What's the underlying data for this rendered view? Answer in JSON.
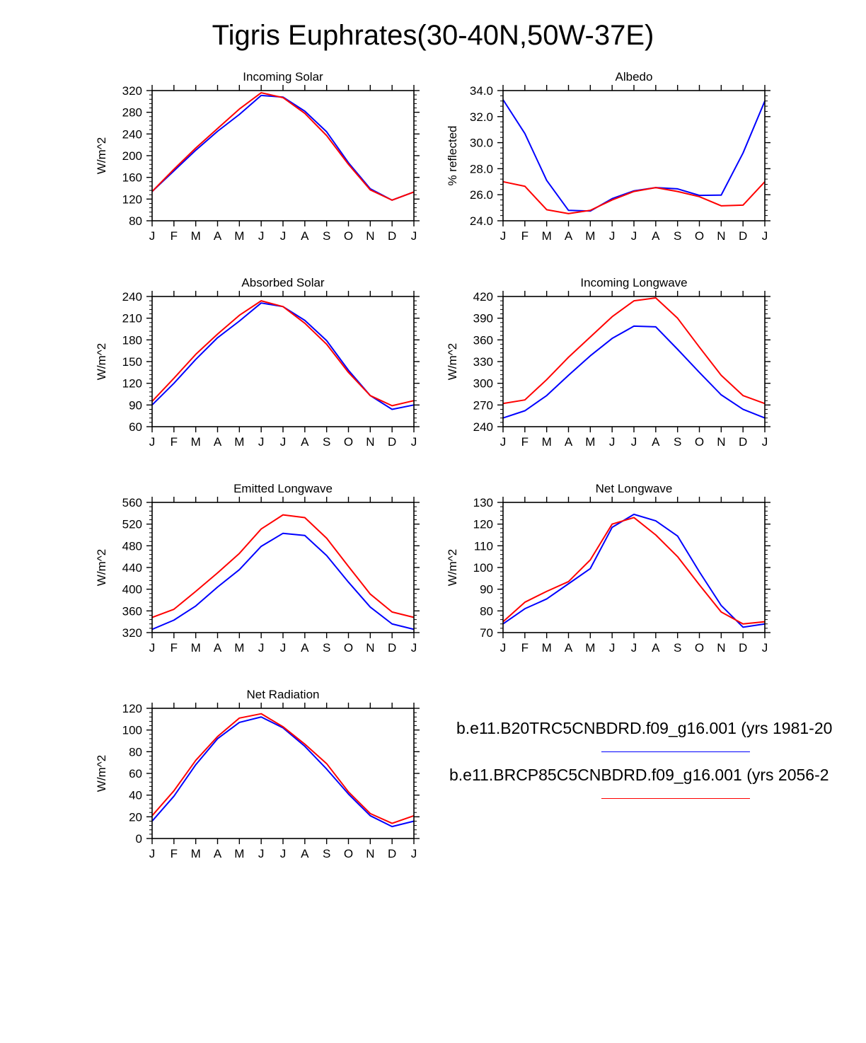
{
  "page": {
    "title": "Tigris Euphrates(30-40N,50W-37E)"
  },
  "months": [
    "J",
    "F",
    "M",
    "A",
    "M",
    "J",
    "J",
    "A",
    "S",
    "O",
    "N",
    "D",
    "J"
  ],
  "colors": {
    "series1": "#0000ff",
    "series2": "#ff0000"
  },
  "legend": {
    "entries": [
      {
        "label": "b.e11.B20TRC5CNBDRD.f09_g16.001 (yrs 1981-20",
        "color": "#0000ff"
      },
      {
        "label": "b.e11.BRCP85C5CNBDRD.f09_g16.001 (yrs 2056-2",
        "color": "#ff0000"
      }
    ]
  },
  "chart_data": [
    {
      "type": "line",
      "title": "Incoming Solar",
      "ylabel": "W/m^2",
      "ylim": [
        80,
        320
      ],
      "yticks": [
        "80",
        "120",
        "160",
        "200",
        "240",
        "280",
        "320"
      ],
      "categories": [
        "J",
        "F",
        "M",
        "A",
        "M",
        "J",
        "J",
        "A",
        "S",
        "O",
        "N",
        "D",
        "J"
      ],
      "series": [
        {
          "values": [
            134,
            172,
            210,
            245,
            276,
            311,
            308,
            282,
            244,
            187,
            139,
            118,
            133
          ],
          "color": "#0000ff"
        },
        {
          "values": [
            134,
            175,
            214,
            250,
            286,
            316,
            307,
            278,
            237,
            184,
            137,
            118,
            133
          ],
          "color": "#ff0000"
        }
      ]
    },
    {
      "type": "line",
      "title": "Albedo",
      "ylabel": "% reflected",
      "ylim": [
        24.0,
        34.0
      ],
      "yticks": [
        "24.0",
        "26.0",
        "28.0",
        "30.0",
        "32.0",
        "34.0"
      ],
      "categories": [
        "J",
        "F",
        "M",
        "A",
        "M",
        "J",
        "J",
        "A",
        "S",
        "O",
        "N",
        "D",
        "J"
      ],
      "series": [
        {
          "values": [
            33.3,
            30.7,
            27.1,
            24.8,
            24.75,
            25.7,
            26.3,
            26.55,
            26.45,
            25.95,
            25.97,
            29.2,
            33.2
          ],
          "color": "#0000ff"
        },
        {
          "values": [
            27.0,
            26.65,
            24.85,
            24.55,
            24.8,
            25.6,
            26.25,
            26.55,
            26.25,
            25.85,
            25.15,
            25.2,
            27.0
          ],
          "color": "#ff0000"
        }
      ]
    },
    {
      "type": "line",
      "title": "Absorbed Solar",
      "ylabel": "W/m^2",
      "ylim": [
        60,
        240
      ],
      "yticks": [
        "60",
        "90",
        "120",
        "150",
        "180",
        "210",
        "240"
      ],
      "categories": [
        "J",
        "F",
        "M",
        "A",
        "M",
        "J",
        "J",
        "A",
        "S",
        "O",
        "N",
        "D",
        "J"
      ],
      "series": [
        {
          "values": [
            90,
            120,
            153,
            183,
            206,
            231,
            226,
            207,
            179,
            138,
            103,
            84,
            90
          ],
          "color": "#0000ff"
        },
        {
          "values": [
            95,
            127,
            160,
            188,
            214,
            234,
            226,
            203,
            174,
            135,
            103,
            89,
            96
          ],
          "color": "#ff0000"
        }
      ]
    },
    {
      "type": "line",
      "title": "Incoming Longwave",
      "ylabel": "W/m^2",
      "ylim": [
        240,
        420
      ],
      "yticks": [
        "240",
        "270",
        "300",
        "330",
        "360",
        "390",
        "420"
      ],
      "categories": [
        "J",
        "F",
        "M",
        "A",
        "M",
        "J",
        "J",
        "A",
        "S",
        "O",
        "N",
        "D",
        "J"
      ],
      "series": [
        {
          "values": [
            252,
            262,
            283,
            311,
            338,
            362,
            379,
            378,
            347,
            315,
            284,
            264,
            252
          ],
          "color": "#0000ff"
        },
        {
          "values": [
            272,
            277,
            305,
            336,
            364,
            392,
            414,
            418,
            390,
            350,
            311,
            283,
            272
          ],
          "color": "#ff0000"
        }
      ]
    },
    {
      "type": "line",
      "title": "Emitted Longwave",
      "ylabel": "W/m^2",
      "ylim": [
        320,
        560
      ],
      "yticks": [
        "320",
        "360",
        "400",
        "440",
        "480",
        "520",
        "560"
      ],
      "categories": [
        "J",
        "F",
        "M",
        "A",
        "M",
        "J",
        "J",
        "A",
        "S",
        "O",
        "N",
        "D",
        "J"
      ],
      "series": [
        {
          "values": [
            326,
            343,
            369,
            404,
            436,
            479,
            503,
            499,
            462,
            413,
            367,
            336,
            326
          ],
          "color": "#0000ff"
        },
        {
          "values": [
            348,
            363,
            396,
            430,
            466,
            511,
            537,
            532,
            494,
            442,
            391,
            358,
            348
          ],
          "color": "#ff0000"
        }
      ]
    },
    {
      "type": "line",
      "title": "Net Longwave",
      "ylabel": "W/m^2",
      "ylim": [
        70,
        130
      ],
      "yticks": [
        "70",
        "80",
        "90",
        "100",
        "110",
        "120",
        "130"
      ],
      "categories": [
        "J",
        "F",
        "M",
        "A",
        "M",
        "J",
        "J",
        "A",
        "S",
        "O",
        "N",
        "D",
        "J"
      ],
      "series": [
        {
          "values": [
            74,
            81,
            85.5,
            92.5,
            99.5,
            118.5,
            124.5,
            121.5,
            114.5,
            98,
            82.5,
            72.5,
            74
          ],
          "color": "#0000ff"
        },
        {
          "values": [
            75,
            84,
            89,
            93.5,
            103.5,
            120,
            123,
            115,
            105,
            92,
            79.5,
            74,
            75
          ],
          "color": "#ff0000"
        }
      ]
    },
    {
      "type": "line",
      "title": "Net Radiation",
      "ylabel": "W/m^2",
      "ylim": [
        0,
        120
      ],
      "yticks": [
        "0",
        "20",
        "40",
        "60",
        "80",
        "100",
        "120"
      ],
      "categories": [
        "J",
        "F",
        "M",
        "A",
        "M",
        "J",
        "J",
        "A",
        "S",
        "O",
        "N",
        "D",
        "J"
      ],
      "series": [
        {
          "values": [
            16,
            39,
            68,
            92,
            107,
            112,
            102,
            85,
            64,
            41,
            21,
            11,
            16
          ],
          "color": "#0000ff"
        },
        {
          "values": [
            21,
            44,
            72,
            94,
            111,
            115,
            103,
            87,
            69,
            43,
            23,
            14,
            21
          ],
          "color": "#ff0000"
        }
      ]
    }
  ]
}
